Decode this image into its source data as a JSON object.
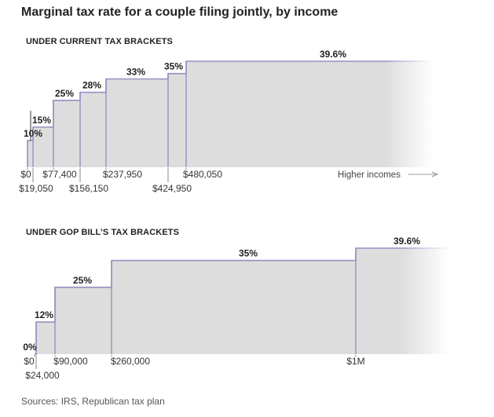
{
  "title": "Marginal tax rate for a couple filing jointly, by income",
  "source": "Sources: IRS, Republican tax plan",
  "colors": {
    "fill": "#dddddd",
    "stroke": "#9a8fc2",
    "tick": "#888888",
    "arrow": "#999999"
  },
  "chart_data": [
    {
      "type": "area",
      "title": "UNDER CURRENT TAX BRACKETS",
      "step": true,
      "x_note": "Higher incomes",
      "ylim": [
        0,
        39.6
      ],
      "brackets": [
        {
          "start": 0,
          "start_label": "$0",
          "rate": 10,
          "rate_label": "10%"
        },
        {
          "start": 19050,
          "start_label": "$19,050",
          "rate": 15,
          "rate_label": "15%"
        },
        {
          "start": 77400,
          "start_label": "$77,400",
          "rate": 25,
          "rate_label": "25%"
        },
        {
          "start": 156150,
          "start_label": "$156,150",
          "rate": 28,
          "rate_label": "28%"
        },
        {
          "start": 237950,
          "start_label": "$237,950",
          "rate": 33,
          "rate_label": "33%"
        },
        {
          "start": 424950,
          "start_label": "$424,950",
          "rate": 35,
          "rate_label": "35%"
        },
        {
          "start": 480050,
          "start_label": "$480,050",
          "rate": 39.6,
          "rate_label": "39.6%"
        }
      ]
    },
    {
      "type": "area",
      "title": "UNDER GOP BILL’S TAX BRACKETS",
      "step": true,
      "ylim": [
        0,
        39.6
      ],
      "brackets": [
        {
          "start": 0,
          "start_label": "$0",
          "rate": 0,
          "rate_label": "0%"
        },
        {
          "start": 24000,
          "start_label": "$24,000",
          "rate": 12,
          "rate_label": "12%"
        },
        {
          "start": 90000,
          "start_label": "$90,000",
          "rate": 25,
          "rate_label": "25%"
        },
        {
          "start": 260000,
          "start_label": "$260,000",
          "rate": 35,
          "rate_label": "35%"
        },
        {
          "start": 1000000,
          "start_label": "$1M",
          "rate": 39.6,
          "rate_label": "39.6%"
        }
      ]
    }
  ]
}
